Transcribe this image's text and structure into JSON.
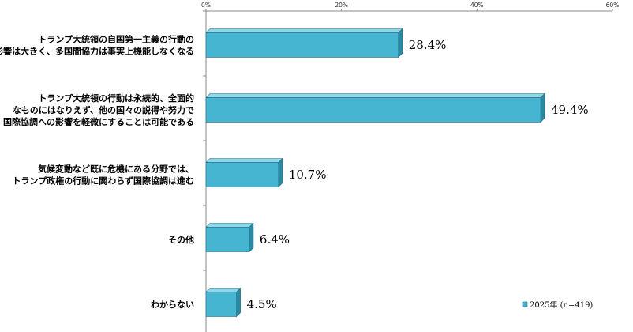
{
  "chart_data": {
    "type": "bar",
    "orientation": "horizontal",
    "categories": [
      [
        "トランプ大統領の自国第一主義の行動の",
        "影響は大きく、多国間協力は事実上機能しなくなる"
      ],
      [
        "トランプ大統領の行動は永続的、全面的",
        "なものにはなりえず、他の国々の説得や努力で",
        "国際協調への影響を軽微にすることは可能である"
      ],
      [
        "気候変動など既に危機にある分野では、",
        "トランプ政権の行動に関わらず国際協調は進む"
      ],
      [
        "その他"
      ],
      [
        "わからない"
      ]
    ],
    "series": [
      {
        "name": "2025年 (n=419)",
        "values": [
          28.4,
          49.4,
          10.7,
          6.4,
          4.5
        ]
      }
    ],
    "data_labels": [
      "28.4%",
      "49.4%",
      "10.7%",
      "6.4%",
      "4.5%"
    ],
    "xlim": [
      0,
      60
    ],
    "x_ticks": [
      0,
      20,
      40,
      60
    ],
    "x_tick_labels": [
      "0%",
      "20%",
      "40%",
      "60%"
    ],
    "axis_position": "top",
    "grid": false,
    "legend": "bottom-right",
    "colors": {
      "bar_front": "#46b5d1",
      "bar_top": "#8fd6e8",
      "bar_side": "#2a8aa4",
      "bar_edge": "#1f6f86"
    }
  }
}
